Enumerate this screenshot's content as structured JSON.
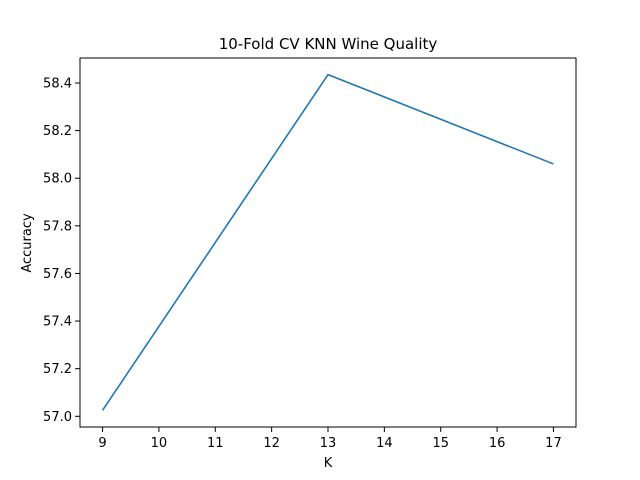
{
  "chart_data": {
    "type": "line",
    "title": "10-Fold CV  KNN Wine Quality",
    "xlabel": "K",
    "ylabel": "Accuracy",
    "x": [
      9,
      13,
      17
    ],
    "series": [
      {
        "values": [
          57.025,
          58.435,
          58.06
        ],
        "color": "#1f77b4"
      }
    ],
    "xlim": [
      8.6,
      17.4
    ],
    "ylim": [
      56.955,
      58.505
    ],
    "xticks": [
      9,
      10,
      11,
      12,
      13,
      14,
      15,
      16,
      17
    ],
    "xtick_labels": [
      "9",
      "10",
      "11",
      "12",
      "13",
      "14",
      "15",
      "16",
      "17"
    ],
    "yticks": [
      57.0,
      57.2,
      57.4,
      57.6,
      57.8,
      58.0,
      58.2,
      58.4
    ],
    "ytick_labels": [
      "57.0",
      "57.2",
      "57.4",
      "57.6",
      "57.8",
      "58.0",
      "58.2",
      "58.4"
    ],
    "grid": false,
    "legend": "none"
  }
}
